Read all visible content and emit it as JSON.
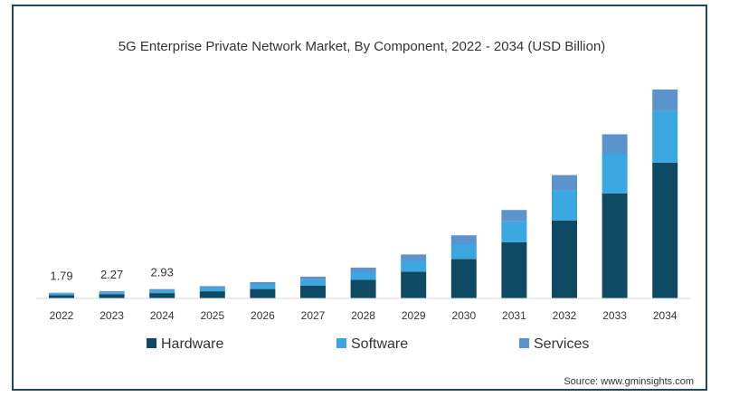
{
  "chart_data": {
    "type": "bar",
    "stacked": true,
    "title": "5G Enterprise Private Network Market, By Component, 2022 - 2034 (USD Billion)",
    "xlabel": "",
    "ylabel": "",
    "categories": [
      "2022",
      "2023",
      "2024",
      "2025",
      "2026",
      "2027",
      "2028",
      "2029",
      "2030",
      "2031",
      "2032",
      "2033",
      "2034"
    ],
    "series": [
      {
        "name": "Hardware",
        "color": "#0e4a63",
        "values": [
          1.02,
          1.3,
          1.68,
          2.25,
          2.98,
          4.08,
          5.89,
          8.44,
          12.47,
          17.7,
          24.61,
          33.11,
          42.84
        ]
      },
      {
        "name": "Software",
        "color": "#3aa7e0",
        "values": [
          0.48,
          0.6,
          0.77,
          0.99,
          1.3,
          1.68,
          2.38,
          3.25,
          4.63,
          6.63,
          9.52,
          12.65,
          16.37
        ]
      },
      {
        "name": "Services",
        "color": "#5b93cc",
        "values": [
          0.29,
          0.37,
          0.48,
          0.65,
          0.87,
          1.11,
          1.45,
          2.17,
          2.81,
          3.56,
          4.78,
          6.01,
          6.66
        ]
      }
    ],
    "data_labels": [
      {
        "category": "2022",
        "text": "1.79"
      },
      {
        "category": "2023",
        "text": "2.27"
      },
      {
        "category": "2024",
        "text": "2.93"
      }
    ],
    "ylim": [
      0,
      75
    ],
    "grid": false,
    "legend_position": "bottom"
  },
  "source": "Source: www.gminsights.com"
}
